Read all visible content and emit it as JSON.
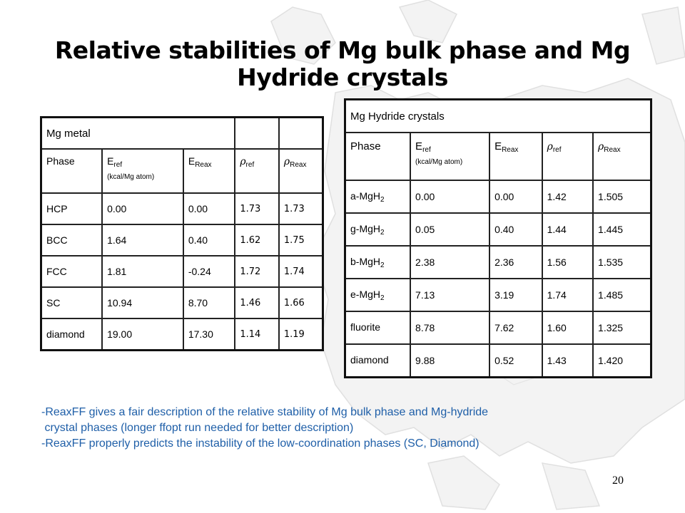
{
  "title": "Relative stabilities of Mg bulk phase and Mg Hydride crystals",
  "metal_table": {
    "caption": "Mg metal",
    "headers": {
      "phase": "Phase",
      "e_ref_main": "E",
      "e_ref_sub": "ref",
      "e_ref_unit": "(kcal/Mg atom)",
      "e_reax_main": "E",
      "e_reax_sub": "Reax",
      "rho_symbol": "ρ",
      "rho_ref_sub": "ref",
      "rho_reax_sub": "Reax"
    },
    "rows": [
      [
        "HCP",
        "0.00",
        "0.00",
        "1.73",
        "1.73"
      ],
      [
        "BCC",
        "1.64",
        "0.40",
        "1.62",
        "1.75"
      ],
      [
        "FCC",
        "1.81",
        "-0.24",
        "1.72",
        "1.74"
      ],
      [
        "SC",
        "10.94",
        "8.70",
        "1.46",
        "1.66"
      ],
      [
        "diamond",
        "19.00",
        "17.30",
        "1.14",
        "1.19"
      ]
    ]
  },
  "hydride_table": {
    "caption": "Mg Hydride crystals",
    "headers": {
      "phase": "Phase",
      "e_ref_main": "E",
      "e_ref_sub": "ref",
      "e_ref_unit": "(kcal/Mg atom)",
      "e_reax_main": "E",
      "e_reax_sub": "Reax",
      "rho_symbol": "ρ",
      "rho_ref_sub": "ref",
      "rho_reax_sub": "Reax"
    },
    "rows": [
      {
        "name": "a-MgH",
        "sub": "2",
        "values": [
          "0.00",
          "0.00",
          "1.42",
          "1.505"
        ]
      },
      {
        "name": "g-MgH",
        "sub": "2",
        "values": [
          "0.05",
          "0.40",
          "1.44",
          "1.445"
        ]
      },
      {
        "name": "b-MgH",
        "sub": "2",
        "values": [
          "2.38",
          "2.36",
          "1.56",
          "1.535"
        ]
      },
      {
        "name": "e-MgH",
        "sub": "2",
        "values": [
          "7.13",
          "3.19",
          "1.74",
          "1.485"
        ]
      },
      {
        "name": "fluorite",
        "sub": "",
        "values": [
          "8.78",
          "7.62",
          "1.60",
          "1.325"
        ]
      },
      {
        "name": "diamond",
        "sub": "",
        "values": [
          "9.88",
          "0.52",
          "1.43",
          "1.420"
        ]
      }
    ]
  },
  "notes": [
    "-ReaxFF gives a fair description of the relative stability of  Mg bulk phase and  Mg-hydride",
    " crystal phases (longer ffopt run needed for better description)",
    "-ReaxFF properly predicts the instability of the low-coordination phases (SC, Diamond)"
  ],
  "page_number": "20",
  "colors": {
    "accent_text": "#1f5fa8",
    "map_fill": "#f2f2f2",
    "map_stroke": "#dcdcdc"
  }
}
